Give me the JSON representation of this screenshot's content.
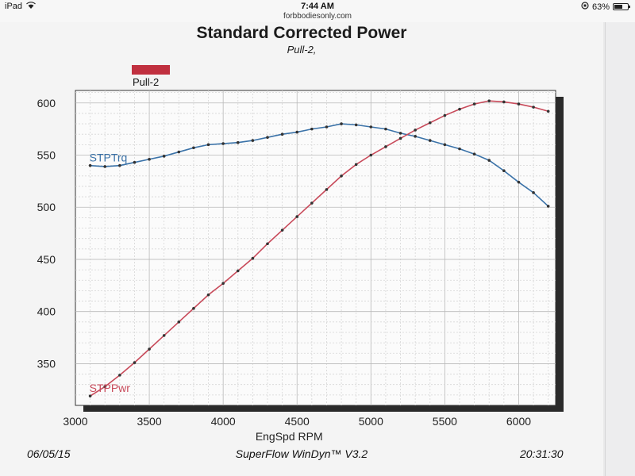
{
  "status_bar": {
    "device": "iPad",
    "time": "7:44 AM",
    "url": "forbbodiesonly.com",
    "battery": "63%",
    "battery_level": 0.63
  },
  "chart_data": {
    "type": "line",
    "title": "Standard Corrected Power",
    "subtitle": "Pull-2,",
    "xlabel": "EngSpd RPM",
    "ylabel": "",
    "xlim": [
      3000,
      6250
    ],
    "ylim": [
      310,
      612
    ],
    "xticks": [
      3000,
      3500,
      4000,
      4500,
      5000,
      5500,
      6000
    ],
    "yticks": [
      350,
      400,
      450,
      500,
      550,
      600
    ],
    "grid": true,
    "legend": [
      {
        "label": "Pull-2",
        "color": "#c0303f"
      }
    ],
    "legend_position": "top-left",
    "x": [
      3100,
      3200,
      3300,
      3400,
      3500,
      3600,
      3700,
      3800,
      3900,
      4000,
      4100,
      4200,
      4300,
      4400,
      4500,
      4600,
      4700,
      4800,
      4900,
      5000,
      5100,
      5200,
      5300,
      5400,
      5500,
      5600,
      5700,
      5800,
      5900,
      6000,
      6100,
      6200
    ],
    "series": [
      {
        "name": "STPTrq",
        "color": "#3a72a8",
        "values": [
          540,
          539,
          540,
          543,
          546,
          549,
          553,
          557,
          560,
          561,
          562,
          564,
          567,
          570,
          572,
          575,
          577,
          580,
          579,
          577,
          575,
          571,
          568,
          564,
          560,
          556,
          551,
          545,
          535,
          524,
          514,
          501
        ]
      },
      {
        "name": "STPPwr",
        "color": "#c84a5a",
        "values": [
          319,
          328,
          339,
          351,
          364,
          377,
          390,
          403,
          416,
          427,
          439,
          451,
          465,
          478,
          491,
          504,
          517,
          530,
          541,
          550,
          558,
          566,
          574,
          581,
          588,
          594,
          599,
          602,
          601,
          599,
          596,
          592
        ]
      }
    ],
    "footer": {
      "date": "06/05/15",
      "software": "SuperFlow WinDyn™ V3.2",
      "time": "20:31:30"
    }
  }
}
